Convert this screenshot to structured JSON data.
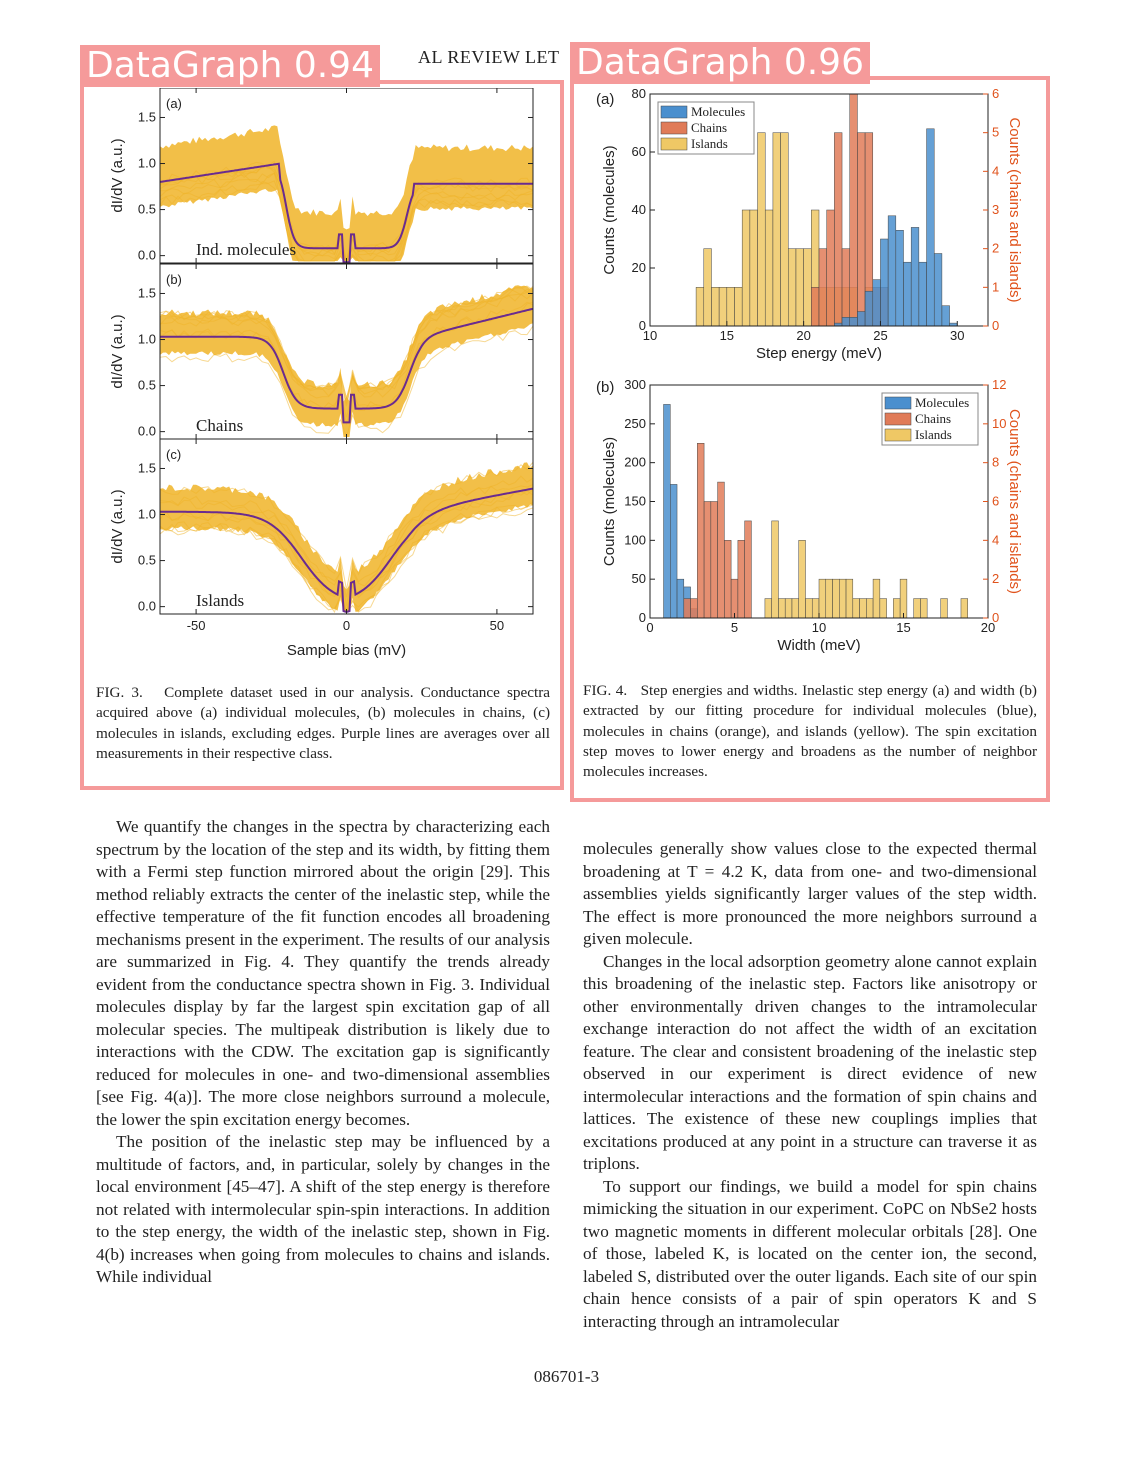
{
  "header": {
    "journal": "AL REVIEW LET"
  },
  "detections": [
    {
      "label": "DataGraph 0.94"
    },
    {
      "label": "DataGraph 0.96"
    }
  ],
  "fig3": {
    "panels": [
      {
        "tag": "(a)",
        "label": "Ind. molecules",
        "kind": "molecules"
      },
      {
        "tag": "(b)",
        "label": "Chains",
        "kind": "chains"
      },
      {
        "tag": "(c)",
        "label": "Islands",
        "kind": "islands"
      }
    ],
    "ylabel": "dI/dV (a.u.)",
    "yticks": [
      "0.0",
      "0.5",
      "1.0",
      "1.5"
    ],
    "xticks": [
      "-50",
      "0",
      "50"
    ],
    "xlabel": "Sample bias (mV)",
    "colors": {
      "spectra": "#f0b428",
      "average": "#6a2b8f"
    },
    "caption_num": "FIG. 3.",
    "caption": "Complete dataset used in our analysis. Conductance spectra acquired above (a) individual molecules, (b) molecules in chains, (c) molecules in islands, excluding edges. Purple lines are averages over all measurements in their respective class."
  },
  "fig4": {
    "caption_num": "FIG. 4.",
    "caption": "Step energies and widths. Inelastic step energy (a) and width (b) extracted by our fitting procedure for individual molecules (blue), molecules in chains (orange), and islands (yellow). The spin excitation step moves to lower energy and broadens as the number of neighbor molecules increases.",
    "legend": [
      "Molecules",
      "Chains",
      "Islands"
    ],
    "colors": {
      "molecules": "#4a8fce",
      "chains": "#e07b58",
      "islands": "#efc865",
      "right_axis": "#e0531c"
    },
    "right_ylabel": "Counts (chains and islands)",
    "left_ylabel": "Counts (molecules)"
  },
  "chart_data": [
    {
      "type": "bar",
      "panel": "(a)",
      "xlabel": "Step energy (meV)",
      "ylabel": "Counts (molecules)",
      "y2label": "Counts (chains and islands)",
      "xlim": [
        10,
        32
      ],
      "ylim": [
        0,
        80
      ],
      "y2lim": [
        0,
        6
      ],
      "xticks": [
        "10",
        "15",
        "20",
        "25",
        "30"
      ],
      "yticks": [
        "0",
        "20",
        "40",
        "60",
        "80"
      ],
      "y2ticks": [
        "0",
        "1",
        "2",
        "3",
        "4",
        "5",
        "6"
      ],
      "bin_width": 0.5,
      "series": [
        {
          "name": "Islands",
          "axis": "right",
          "x": [
            13.0,
            13.5,
            14.0,
            14.5,
            15.0,
            15.5,
            16.0,
            16.5,
            17.0,
            17.5,
            18.0,
            18.5,
            19.0,
            19.5,
            20.0,
            20.5,
            21.0,
            21.5,
            22.0,
            22.5,
            23.0,
            23.5,
            24.0
          ],
          "values": [
            1,
            2,
            1,
            1,
            1,
            1,
            3,
            3,
            5,
            3,
            5,
            5,
            2,
            2,
            2,
            3,
            1,
            1,
            1,
            1,
            1,
            0,
            1
          ]
        },
        {
          "name": "Chains",
          "axis": "right",
          "x": [
            20.5,
            21.0,
            21.5,
            22.0,
            22.5,
            23.0,
            23.5,
            24.0,
            24.5,
            25.0
          ],
          "values": [
            1,
            2,
            3,
            5,
            2,
            6,
            5,
            5,
            1,
            1
          ]
        },
        {
          "name": "Molecules",
          "axis": "left",
          "x": [
            22.0,
            22.5,
            23.0,
            23.5,
            24.0,
            24.5,
            25.0,
            25.5,
            26.0,
            26.5,
            27.0,
            27.5,
            28.0,
            28.5,
            29.0,
            29.5
          ],
          "values": [
            1,
            3,
            3,
            5,
            12,
            16,
            30,
            38,
            33,
            22,
            34,
            22,
            68,
            25,
            7,
            1
          ]
        }
      ]
    },
    {
      "type": "bar",
      "panel": "(b)",
      "xlabel": "Width (meV)",
      "ylabel": "Counts (molecules)",
      "y2label": "Counts (chains and islands)",
      "xlim": [
        0,
        20
      ],
      "ylim": [
        0,
        300
      ],
      "y2lim": [
        0,
        12
      ],
      "xticks": [
        "0",
        "5",
        "10",
        "15",
        "20"
      ],
      "yticks": [
        "0",
        "50",
        "100",
        "150",
        "200",
        "250",
        "300"
      ],
      "y2ticks": [
        "0",
        "2",
        "4",
        "6",
        "8",
        "10",
        "12"
      ],
      "bin_width": 0.4,
      "series": [
        {
          "name": "Molecules",
          "axis": "left",
          "x": [
            0.8,
            1.2,
            1.6,
            2.0,
            2.4
          ],
          "values": [
            275,
            172,
            50,
            40,
            12
          ]
        },
        {
          "name": "Chains",
          "axis": "right",
          "x": [
            2.0,
            2.4,
            2.8,
            3.2,
            3.6,
            4.0,
            4.4,
            4.8,
            5.2,
            5.6
          ],
          "values": [
            1,
            1,
            9,
            6,
            6,
            7,
            4,
            2,
            4,
            5
          ]
        },
        {
          "name": "Islands",
          "axis": "right",
          "x": [
            6.8,
            7.2,
            7.6,
            8.0,
            8.4,
            8.8,
            9.2,
            9.6,
            10.0,
            10.4,
            10.8,
            11.2,
            11.6,
            12.0,
            12.4,
            12.8,
            13.2,
            13.6,
            14.4,
            14.8,
            15.6,
            16.0,
            17.2,
            18.4
          ],
          "values": [
            1,
            5,
            1,
            1,
            1,
            4,
            1,
            1,
            2,
            2,
            2,
            2,
            2,
            1,
            1,
            1,
            2,
            1,
            1,
            2,
            1,
            1,
            1,
            1
          ]
        }
      ]
    }
  ],
  "body": {
    "left_paragraphs": [
      "We quantify the changes in the spectra by characterizing each spectrum by the location of the step and its width, by fitting them with a Fermi step function mirrored about the origin [29]. This method reliably extracts the center of the inelastic step, while the effective temperature of the fit function encodes all broadening mechanisms present in the experiment. The results of our analysis are summarized in Fig. 4. They quantify the trends already evident from the conductance spectra shown in Fig. 3. Individual molecules display by far the largest spin excitation gap of all molecular species. The multipeak distribution is likely due to interactions with the CDW. The excitation gap is significantly reduced for molecules in one- and two-dimensional assemblies [see Fig. 4(a)]. The more close neighbors surround a molecule, the lower the spin excitation energy becomes.",
      "The position of the inelastic step may be influenced by a multitude of factors, and, in particular, solely by changes in the local environment [45–47]. A shift of the step energy is therefore not related with intermolecular spin-spin interactions. In addition to the step energy, the width of the inelastic step, shown in Fig. 4(b) increases when going from molecules to chains and islands. While individual"
    ],
    "right_paragraphs": [
      "molecules generally show values close to the expected thermal broadening at T = 4.2 K, data from one- and two-dimensional assemblies yields significantly larger values of the step width. The effect is more pronounced the more neighbors surround a given molecule.",
      "Changes in the local adsorption geometry alone cannot explain this broadening of the inelastic step. Factors like anisotropy or other environmentally driven changes to the intramolecular exchange interaction do not affect the width of an excitation feature. The clear and consistent broadening of the inelastic step observed in our experiment is direct evidence of new intermolecular interactions and the formation of spin chains and lattices. The existence of these new couplings implies that excitations produced at any point in a structure can traverse it as triplons.",
      "To support our findings, we build a model for spin chains mimicking the situation in our experiment. CoPC on NbSe2 hosts two magnetic moments in different molecular orbitals [28]. One of those, labeled K, is located on the center ion, the second, labeled S, distributed over the outer ligands. Each site of our spin chain hence consists of a pair of spin operators K and S interacting through an intramolecular"
    ]
  },
  "page_number": "086701-3"
}
